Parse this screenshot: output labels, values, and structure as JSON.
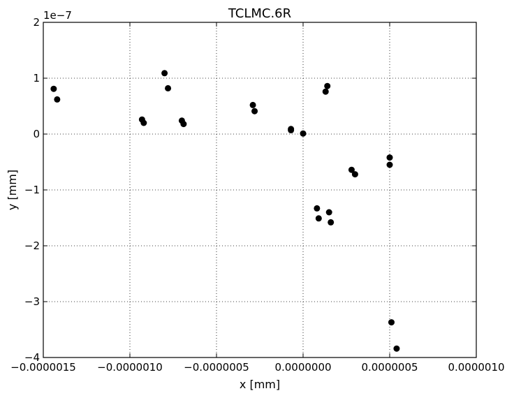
{
  "chart_data": {
    "type": "scatter",
    "title": "TCLMC.6R",
    "xlabel": "x [mm]",
    "ylabel": "y [mm]",
    "y_offset_label": "1e−7",
    "xlim": [
      -1.5e-06,
      1e-06
    ],
    "ylim": [
      -4,
      2
    ],
    "grid": true,
    "marker_color": "#000000",
    "x_ticks": [
      {
        "value": -1.5e-06,
        "label": "−0.0000015"
      },
      {
        "value": -1e-06,
        "label": "−0.0000010"
      },
      {
        "value": -5e-07,
        "label": "−0.0000005"
      },
      {
        "value": 0,
        "label": "0.0000000"
      },
      {
        "value": 5e-07,
        "label": "0.0000005"
      },
      {
        "value": 1e-06,
        "label": "0.0000010"
      }
    ],
    "y_ticks": [
      {
        "value": -4,
        "label": "−4"
      },
      {
        "value": -3,
        "label": "−3"
      },
      {
        "value": -2,
        "label": "−2"
      },
      {
        "value": -1,
        "label": "−1"
      },
      {
        "value": 0,
        "label": "0"
      },
      {
        "value": 1,
        "label": "1"
      },
      {
        "value": 2,
        "label": "2"
      }
    ],
    "points": [
      {
        "x": -1.44e-06,
        "y": 0.81
      },
      {
        "x": -1.42e-06,
        "y": 0.62
      },
      {
        "x": -9.3e-07,
        "y": 0.26
      },
      {
        "x": -9.2e-07,
        "y": 0.2
      },
      {
        "x": -8e-07,
        "y": 1.09
      },
      {
        "x": -7.8e-07,
        "y": 0.82
      },
      {
        "x": -7e-07,
        "y": 0.24
      },
      {
        "x": -6.9e-07,
        "y": 0.18
      },
      {
        "x": -2.9e-07,
        "y": 0.52
      },
      {
        "x": -2.8e-07,
        "y": 0.41
      },
      {
        "x": -7e-08,
        "y": 0.09
      },
      {
        "x": -7e-08,
        "y": 0.07
      },
      {
        "x": 0.0,
        "y": 0.01
      },
      {
        "x": 8e-08,
        "y": -1.33
      },
      {
        "x": 9e-08,
        "y": -1.51
      },
      {
        "x": 1.3e-07,
        "y": 0.76
      },
      {
        "x": 1.4e-07,
        "y": 0.86
      },
      {
        "x": 1.5e-07,
        "y": -1.4
      },
      {
        "x": 1.6e-07,
        "y": -1.58
      },
      {
        "x": 2.8e-07,
        "y": -0.64
      },
      {
        "x": 3e-07,
        "y": -0.72
      },
      {
        "x": 5e-07,
        "y": -0.42
      },
      {
        "x": 5e-07,
        "y": -0.55
      },
      {
        "x": 5.1e-07,
        "y": -3.37
      },
      {
        "x": 5.4e-07,
        "y": -3.84
      }
    ]
  }
}
